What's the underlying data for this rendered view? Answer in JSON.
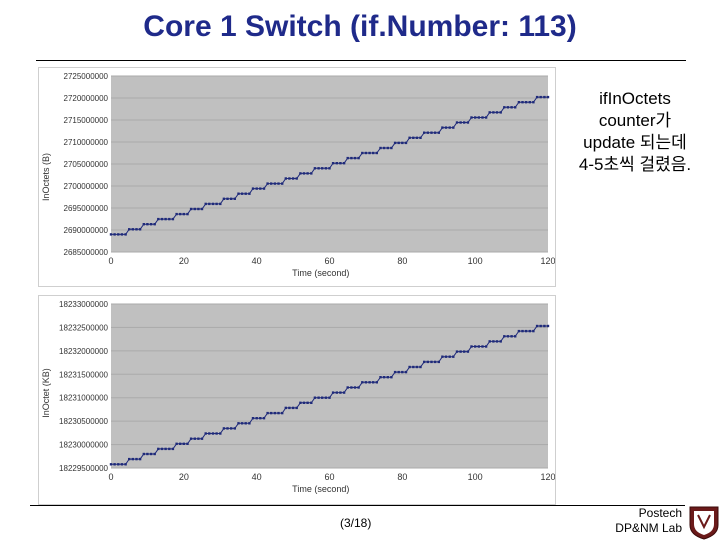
{
  "slide": {
    "title": "Core 1 Switch (if.Number: 113)",
    "callout_lines": [
      "ifInOctets",
      "counter가",
      "update 되는데",
      "4-5초씩 걸렸음."
    ],
    "page_number": "(3/18)",
    "footer_lines": [
      "Postech",
      "DP&NM Lab"
    ]
  },
  "colors": {
    "title": "#1f2a8a",
    "series": "#1f2a7a",
    "grid": "#aaaaaa",
    "plot_bg": "#c0c0c0"
  },
  "chart_data": [
    {
      "type": "line",
      "xlabel": "Time (second)",
      "ylabel": "InOctets (B)",
      "xticks": [
        0,
        20,
        40,
        60,
        80,
        100,
        120
      ],
      "xlim": [
        0,
        120
      ],
      "ytick_labels": [
        "2725000000",
        "2720000000",
        "2715000000",
        "2710000000",
        "2705000000",
        "2700000000",
        "2695000000",
        "2690000000",
        "2685000000"
      ],
      "yticks": [
        2725000000,
        2720000000,
        2715000000,
        2710000000,
        2705000000,
        2700000000,
        2695000000,
        2690000000,
        2685000000
      ],
      "ylim": [
        2685000000,
        2725000000
      ],
      "grid": true,
      "legend": "none",
      "series": [
        {
          "x_start": 0,
          "x_end": 120,
          "step_seconds": 4.3,
          "y_start": 2689000000,
          "y_end": 2720200000
        }
      ]
    },
    {
      "type": "line",
      "xlabel": "Time (second)",
      "ylabel": "InOctet (KB)",
      "xticks": [
        0,
        20,
        40,
        60,
        80,
        100,
        120
      ],
      "xlim": [
        0,
        120
      ],
      "ytick_labels": [
        "18233000000",
        "18232500000",
        "18232000000",
        "18231500000",
        "18231000000",
        "18230500000",
        "18230000000",
        "18229500000"
      ],
      "yticks": [
        18233000000,
        18232500000,
        18232000000,
        18231500000,
        18231000000,
        18230500000,
        18230000000,
        18229500000
      ],
      "ylim": [
        18229500000,
        18233000000
      ],
      "grid": true,
      "legend": "none",
      "series": [
        {
          "x_start": 0,
          "x_end": 120,
          "step_seconds": 4.3,
          "y_start": 18229580000,
          "y_end": 18232530000
        }
      ]
    }
  ]
}
